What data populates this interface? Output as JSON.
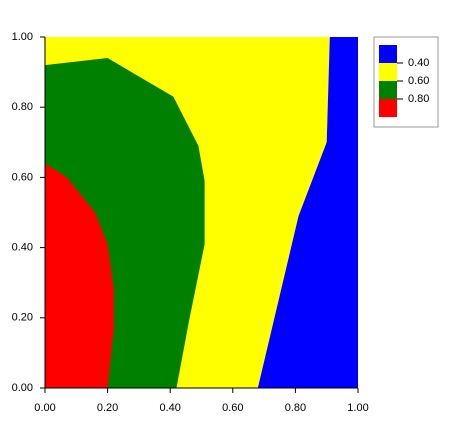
{
  "chart_data": {
    "type": "contour",
    "xlim": [
      0,
      1
    ],
    "ylim": [
      0,
      1
    ],
    "xticks": [
      {
        "value": 0,
        "label": "0.00"
      },
      {
        "value": 0.2,
        "label": "0.20"
      },
      {
        "value": 0.4,
        "label": "0.40"
      },
      {
        "value": 0.6,
        "label": "0.60"
      },
      {
        "value": 0.8,
        "label": "0.80"
      },
      {
        "value": 1,
        "label": "1.00"
      }
    ],
    "yticks": [
      {
        "value": 0,
        "label": "0.00"
      },
      {
        "value": 0.2,
        "label": "0.20"
      },
      {
        "value": 0.4,
        "label": "0.40"
      },
      {
        "value": 0.6,
        "label": "0.60"
      },
      {
        "value": 0.8,
        "label": "0.80"
      },
      {
        "value": 1,
        "label": "1.00"
      }
    ],
    "regions": [
      {
        "color": "#ffff00",
        "x": [
          0,
          0.91,
          0.9,
          0.81,
          0.68,
          0
        ],
        "y": [
          1,
          1,
          0.7,
          0.49,
          0,
          0
        ]
      },
      {
        "color": "#0000ff",
        "x": [
          0.91,
          1,
          1,
          0.68,
          0.81,
          0.9
        ],
        "y": [
          1,
          1,
          0,
          0,
          0.49,
          0.7
        ]
      },
      {
        "color": "#008000",
        "x": [
          0,
          0,
          0.2,
          0.41,
          0.49,
          0.51,
          0.51,
          0.46,
          0.42
        ],
        "y": [
          0,
          0.92,
          0.94,
          0.83,
          0.69,
          0.59,
          0.41,
          0.19,
          0
        ]
      },
      {
        "color": "#ff0000",
        "x": [
          0,
          0,
          0.07,
          0.16,
          0.2,
          0.22,
          0.22,
          0.2
        ],
        "y": [
          0,
          0.64,
          0.6,
          0.5,
          0.41,
          0.28,
          0.17,
          0
        ]
      }
    ],
    "legend": {
      "colors": [
        "#0000ff",
        "#ffff00",
        "#008000",
        "#ff0000"
      ],
      "levels": [
        {
          "value": 0.4,
          "label": "0.40"
        },
        {
          "value": 0.6,
          "label": "0.60"
        },
        {
          "value": 0.8,
          "label": "0.80"
        }
      ]
    }
  }
}
